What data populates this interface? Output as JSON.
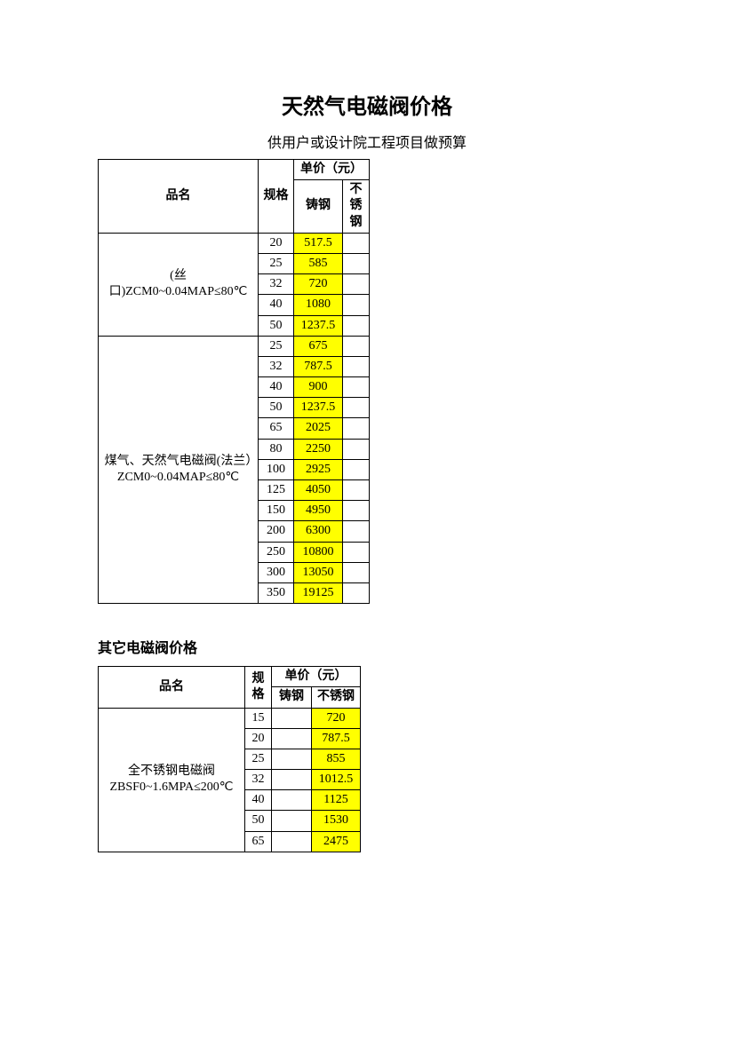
{
  "title": "天然气电磁阀价格",
  "subtitle": "供用户或设计院工程项目做预算",
  "table1": {
    "headers": {
      "name": "品名",
      "spec": "规格",
      "price_group": "单价（元）",
      "cast_steel": "铸钢",
      "stainless": "不锈钢"
    },
    "groups": [
      {
        "name": "(丝口)ZCM0~0.04MAP≤80℃",
        "rows": [
          {
            "spec": "20",
            "p1": "517.5",
            "p2": ""
          },
          {
            "spec": "25",
            "p1": "585",
            "p2": ""
          },
          {
            "spec": "32",
            "p1": "720",
            "p2": ""
          },
          {
            "spec": "40",
            "p1": "1080",
            "p2": ""
          },
          {
            "spec": "50",
            "p1": "1237.5",
            "p2": ""
          }
        ]
      },
      {
        "name": "煤气、天然气电磁阀(法兰）ZCM0~0.04MAP≤80℃",
        "rows": [
          {
            "spec": "25",
            "p1": "675",
            "p2": ""
          },
          {
            "spec": "32",
            "p1": "787.5",
            "p2": ""
          },
          {
            "spec": "40",
            "p1": "900",
            "p2": ""
          },
          {
            "spec": "50",
            "p1": "1237.5",
            "p2": ""
          },
          {
            "spec": "65",
            "p1": "2025",
            "p2": ""
          },
          {
            "spec": "80",
            "p1": "2250",
            "p2": ""
          },
          {
            "spec": "100",
            "p1": "2925",
            "p2": ""
          },
          {
            "spec": "125",
            "p1": "4050",
            "p2": ""
          },
          {
            "spec": "150",
            "p1": "4950",
            "p2": ""
          },
          {
            "spec": "200",
            "p1": "6300",
            "p2": ""
          },
          {
            "spec": "250",
            "p1": "10800",
            "p2": ""
          },
          {
            "spec": "300",
            "p1": "13050",
            "p2": ""
          },
          {
            "spec": "350",
            "p1": "19125",
            "p2": ""
          }
        ]
      }
    ]
  },
  "section2_title": "其它电磁阀价格",
  "table2": {
    "headers": {
      "name": "品名",
      "spec": "规格",
      "price_group": "单价（元）",
      "cast_steel": "铸钢",
      "stainless": "不锈钢"
    },
    "groups": [
      {
        "name": "全不锈钢电磁阀ZBSF0~1.6MPA≤200℃",
        "rows": [
          {
            "spec": "15",
            "p1": "",
            "p2": "720"
          },
          {
            "spec": "20",
            "p1": "",
            "p2": "787.5"
          },
          {
            "spec": "25",
            "p1": "",
            "p2": "855"
          },
          {
            "spec": "32",
            "p1": "",
            "p2": "1012.5"
          },
          {
            "spec": "40",
            "p1": "",
            "p2": "1125"
          },
          {
            "spec": "50",
            "p1": "",
            "p2": "1530"
          },
          {
            "spec": "65",
            "p1": "",
            "p2": "2475"
          }
        ]
      }
    ]
  },
  "colors": {
    "highlight": "#ffff00",
    "border": "#000000",
    "text": "#000000",
    "background": "#ffffff"
  }
}
